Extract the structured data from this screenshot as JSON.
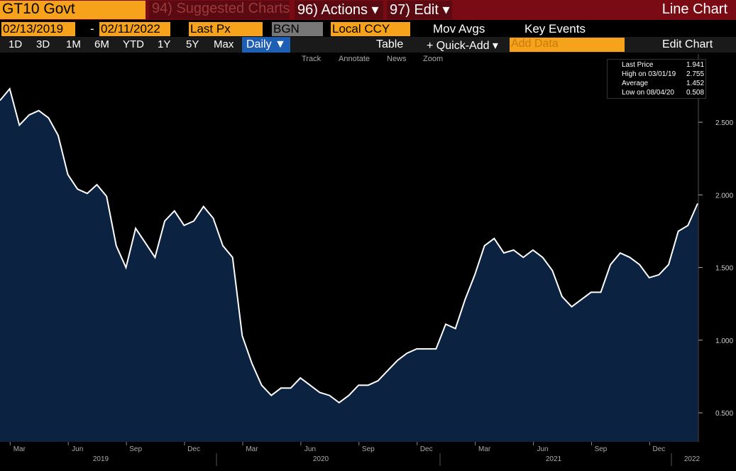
{
  "header": {
    "ticker": "GT10 Govt",
    "menu": [
      "94) Suggested Charts",
      "96) Actions ▾",
      "97) Edit ▾"
    ],
    "title": "Line Chart"
  },
  "controls": {
    "start_date": "02/13/2019",
    "separator": "-",
    "end_date": "02/11/2022",
    "field": "Last Px",
    "source": "BGN",
    "currency": "Local CCY",
    "mov_avgs": "Mov Avgs",
    "key_events": "Key Events"
  },
  "toolbar": {
    "periods": [
      "1D",
      "3D",
      "1M",
      "6M",
      "YTD",
      "1Y",
      "5Y",
      "Max"
    ],
    "frequency": "Daily ▼",
    "table": "Table",
    "quick_add": "+ Quick-Add ▾",
    "add_data": "Add Data",
    "edit_chart": "Edit Chart"
  },
  "tools": [
    "Track",
    "Annotate",
    "News",
    "Zoom"
  ],
  "legend": [
    {
      "label": "Last Price",
      "value": "1.941"
    },
    {
      "label": "High on 03/01/19",
      "value": "2.755"
    },
    {
      "label": "Average",
      "value": "1.452"
    },
    {
      "label": "Low on 08/04/20",
      "value": "0.508"
    }
  ],
  "chart_data": {
    "type": "line",
    "color": "#ffffff",
    "area_color": "#0b2240",
    "categories": [
      null,
      null,
      "Mar",
      null,
      null,
      null,
      null,
      null,
      "Jun",
      null,
      null,
      null,
      null,
      null,
      "Sep",
      null,
      null,
      null,
      null,
      null,
      "Dec",
      null,
      null,
      null,
      null,
      null,
      "Mar",
      null,
      null,
      null,
      null,
      null,
      "Jun",
      null,
      null,
      null,
      null,
      null,
      "Sep",
      null,
      null,
      null,
      null,
      null,
      "Dec",
      null,
      null,
      null,
      null,
      null,
      "Mar",
      null,
      null,
      null,
      null,
      null,
      "Jun",
      null,
      null,
      null,
      null,
      null,
      "Sep",
      null,
      null,
      null,
      null,
      null,
      "Dec",
      null,
      null,
      null,
      null
    ],
    "x_groups": [
      "2019",
      "2020",
      "2021",
      "2022"
    ],
    "values": [
      2.65,
      2.73,
      2.48,
      2.55,
      2.58,
      2.53,
      2.41,
      2.14,
      2.04,
      2.01,
      2.07,
      1.99,
      1.65,
      1.5,
      1.77,
      1.67,
      1.57,
      1.82,
      1.89,
      1.79,
      1.82,
      1.92,
      1.84,
      1.65,
      1.57,
      1.03,
      0.84,
      0.69,
      0.62,
      0.67,
      0.67,
      0.74,
      0.69,
      0.64,
      0.62,
      0.57,
      0.62,
      0.69,
      0.69,
      0.72,
      0.79,
      0.86,
      0.91,
      0.94,
      0.94,
      0.94,
      1.11,
      1.08,
      1.28,
      1.45,
      1.65,
      1.7,
      1.6,
      1.62,
      1.57,
      1.62,
      1.57,
      1.48,
      1.3,
      1.23,
      1.28,
      1.33,
      1.33,
      1.52,
      1.6,
      1.57,
      1.52,
      1.43,
      1.45,
      1.52,
      1.75,
      1.79,
      1.941
    ],
    "ylim": [
      0.3,
      2.96
    ],
    "yticks": [
      {
        "value": 0.5,
        "label": "0.500"
      },
      {
        "value": 1,
        "label": "1.000"
      },
      {
        "value": 1.5,
        "label": "1.500"
      },
      {
        "value": 2,
        "label": "2.000"
      },
      {
        "value": 2.5,
        "label": "2.500"
      }
    ]
  }
}
